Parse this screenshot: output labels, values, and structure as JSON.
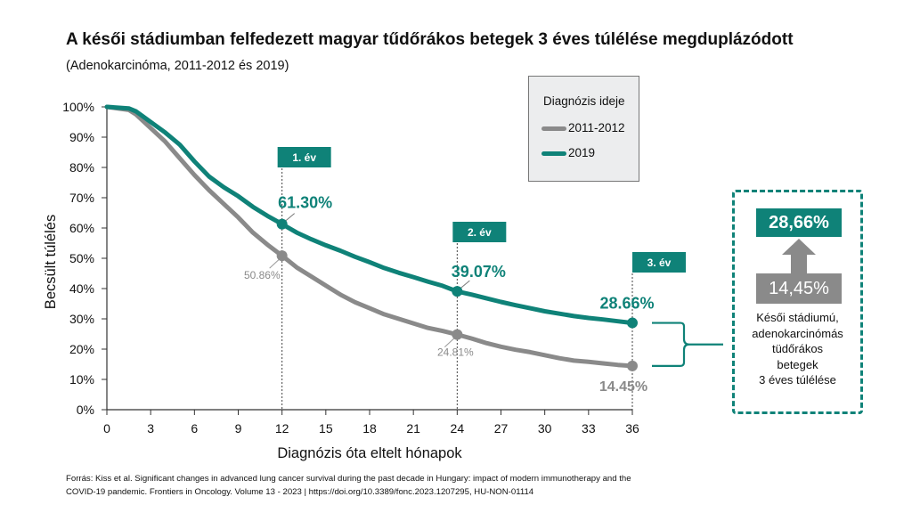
{
  "title": "A késői stádiumban felfedezett magyar tűdőrákos betegek 3 éves túlélése megduplázódott",
  "subtitle": "(Adenokarcinóma, 2011-2012 és 2019)",
  "footer": {
    "line1": "Forrás: Kiss et al. Significant changes in advanced lung cancer survival during the past decade in Hungary: impact of modern immunotherapy and the",
    "line2": "COVID-19 pandemic. Frontiers in Oncology. Volume 13 - 2023 | https://doi.org/10.3389/fonc.2023.1207295, HU-NON-01114"
  },
  "legend": {
    "title": "Diagnózis ideje",
    "items": [
      {
        "label": "2011-2012",
        "color": "#8a8a8a"
      },
      {
        "label": "2019",
        "color": "#0f8278"
      }
    ]
  },
  "side_panel": {
    "top_value": "28,66%",
    "bottom_value": "14,45%",
    "caption": [
      "Késői stádiumú,",
      "adenokarcinómás",
      "tüdőrákos",
      "betegek",
      "3 éves túlélése"
    ]
  },
  "colors": {
    "teal": "#0f8278",
    "gray": "#8a8a8a"
  },
  "chart_data": {
    "type": "line",
    "xlabel": "Diagnózis óta eltelt hónapok",
    "ylabel": "Becsült túlélés",
    "xlim": [
      0,
      36
    ],
    "ylim": [
      0,
      100
    ],
    "xticks": [
      "0",
      "3",
      "6",
      "9",
      "12",
      "15",
      "18",
      "21",
      "24",
      "27",
      "30",
      "33",
      "36"
    ],
    "yticks": [
      "0%",
      "10%",
      "20%",
      "30%",
      "40%",
      "50%",
      "60%",
      "70%",
      "80%",
      "90%",
      "100%"
    ],
    "year_markers": [
      {
        "x": 12,
        "label": "1. év"
      },
      {
        "x": 24,
        "label": "2. év"
      },
      {
        "x": 36,
        "label": "3. év"
      }
    ],
    "series": [
      {
        "name": "2011-2012",
        "color": "#8a8a8a",
        "points": [
          [
            0,
            100
          ],
          [
            1.5,
            99
          ],
          [
            2,
            97.5
          ],
          [
            3,
            93
          ],
          [
            4,
            88.5
          ],
          [
            5,
            83
          ],
          [
            6,
            77.5
          ],
          [
            7,
            72.5
          ],
          [
            8,
            68
          ],
          [
            9,
            63.5
          ],
          [
            10,
            58.5
          ],
          [
            11,
            54.5
          ],
          [
            12,
            50.86
          ],
          [
            13,
            47
          ],
          [
            14,
            44
          ],
          [
            15,
            41
          ],
          [
            16,
            38
          ],
          [
            17,
            35.5
          ],
          [
            18,
            33.5
          ],
          [
            19,
            31.5
          ],
          [
            20,
            30
          ],
          [
            21,
            28.5
          ],
          [
            22,
            27
          ],
          [
            23,
            26
          ],
          [
            24,
            24.81
          ],
          [
            25,
            23.5
          ],
          [
            26,
            22
          ],
          [
            27,
            20.8
          ],
          [
            28,
            19.8
          ],
          [
            29,
            19
          ],
          [
            30,
            18
          ],
          [
            31,
            17
          ],
          [
            32,
            16.2
          ],
          [
            33,
            15.8
          ],
          [
            34,
            15.3
          ],
          [
            35,
            14.8
          ],
          [
            36,
            14.45
          ]
        ],
        "labels": [
          {
            "x": 12,
            "y": 50.86,
            "text": "50.86%"
          },
          {
            "x": 24,
            "y": 24.81,
            "text": "24.81%"
          },
          {
            "x": 36,
            "y": 14.45,
            "text": "14.45%"
          }
        ]
      },
      {
        "name": "2019",
        "color": "#0f8278",
        "points": [
          [
            0,
            100
          ],
          [
            1.5,
            99.5
          ],
          [
            2,
            98.5
          ],
          [
            3,
            95
          ],
          [
            4,
            91.5
          ],
          [
            5,
            87.5
          ],
          [
            6,
            82
          ],
          [
            7,
            77
          ],
          [
            8,
            73.5
          ],
          [
            9,
            70.5
          ],
          [
            10,
            67
          ],
          [
            11,
            64
          ],
          [
            12,
            61.3
          ],
          [
            13,
            58.5
          ],
          [
            14,
            56.3
          ],
          [
            15,
            54.3
          ],
          [
            16,
            52.5
          ],
          [
            17,
            50.5
          ],
          [
            18,
            48.7
          ],
          [
            19,
            46.8
          ],
          [
            20,
            45.2
          ],
          [
            21,
            43.8
          ],
          [
            22,
            42.3
          ],
          [
            23,
            40.9
          ],
          [
            24,
            39.07
          ],
          [
            25,
            38
          ],
          [
            26,
            36.8
          ],
          [
            27,
            35.6
          ],
          [
            28,
            34.5
          ],
          [
            29,
            33.5
          ],
          [
            30,
            32.5
          ],
          [
            31,
            31.7
          ],
          [
            32,
            30.9
          ],
          [
            33,
            30.3
          ],
          [
            34,
            29.8
          ],
          [
            35,
            29.2
          ],
          [
            36,
            28.66
          ]
        ],
        "labels": [
          {
            "x": 12,
            "y": 61.3,
            "text": "61.30%"
          },
          {
            "x": 24,
            "y": 39.07,
            "text": "39.07%"
          },
          {
            "x": 36,
            "y": 28.66,
            "text": "28.66%"
          }
        ]
      }
    ]
  }
}
